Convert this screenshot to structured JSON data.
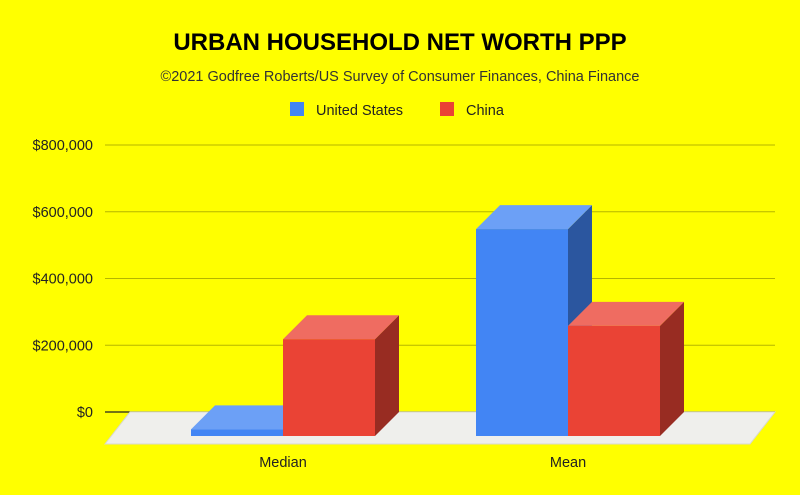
{
  "chart_data": {
    "type": "bar",
    "title": "URBAN HOUSEHOLD NET WORTH PPP",
    "subtitle": "©2021 Godfree Roberts/US Survey of Consumer Finances, China Finance",
    "categories": [
      "Median",
      "Mean"
    ],
    "series": [
      {
        "name": "United States",
        "color": "#4285f4",
        "values": [
          20000,
          620000
        ]
      },
      {
        "name": "China",
        "color": "#ea4335",
        "values": [
          290000,
          330000
        ]
      }
    ],
    "ylim": [
      0,
      800000
    ],
    "yticks": [
      {
        "value": 0,
        "label": "$0"
      },
      {
        "value": 200000,
        "label": "$200,000"
      },
      {
        "value": 400000,
        "label": "$400,000"
      },
      {
        "value": 600000,
        "label": "$600,000"
      },
      {
        "value": 800000,
        "label": "$800,000"
      }
    ],
    "legend_position": "top",
    "grid": true,
    "style": "3d"
  }
}
